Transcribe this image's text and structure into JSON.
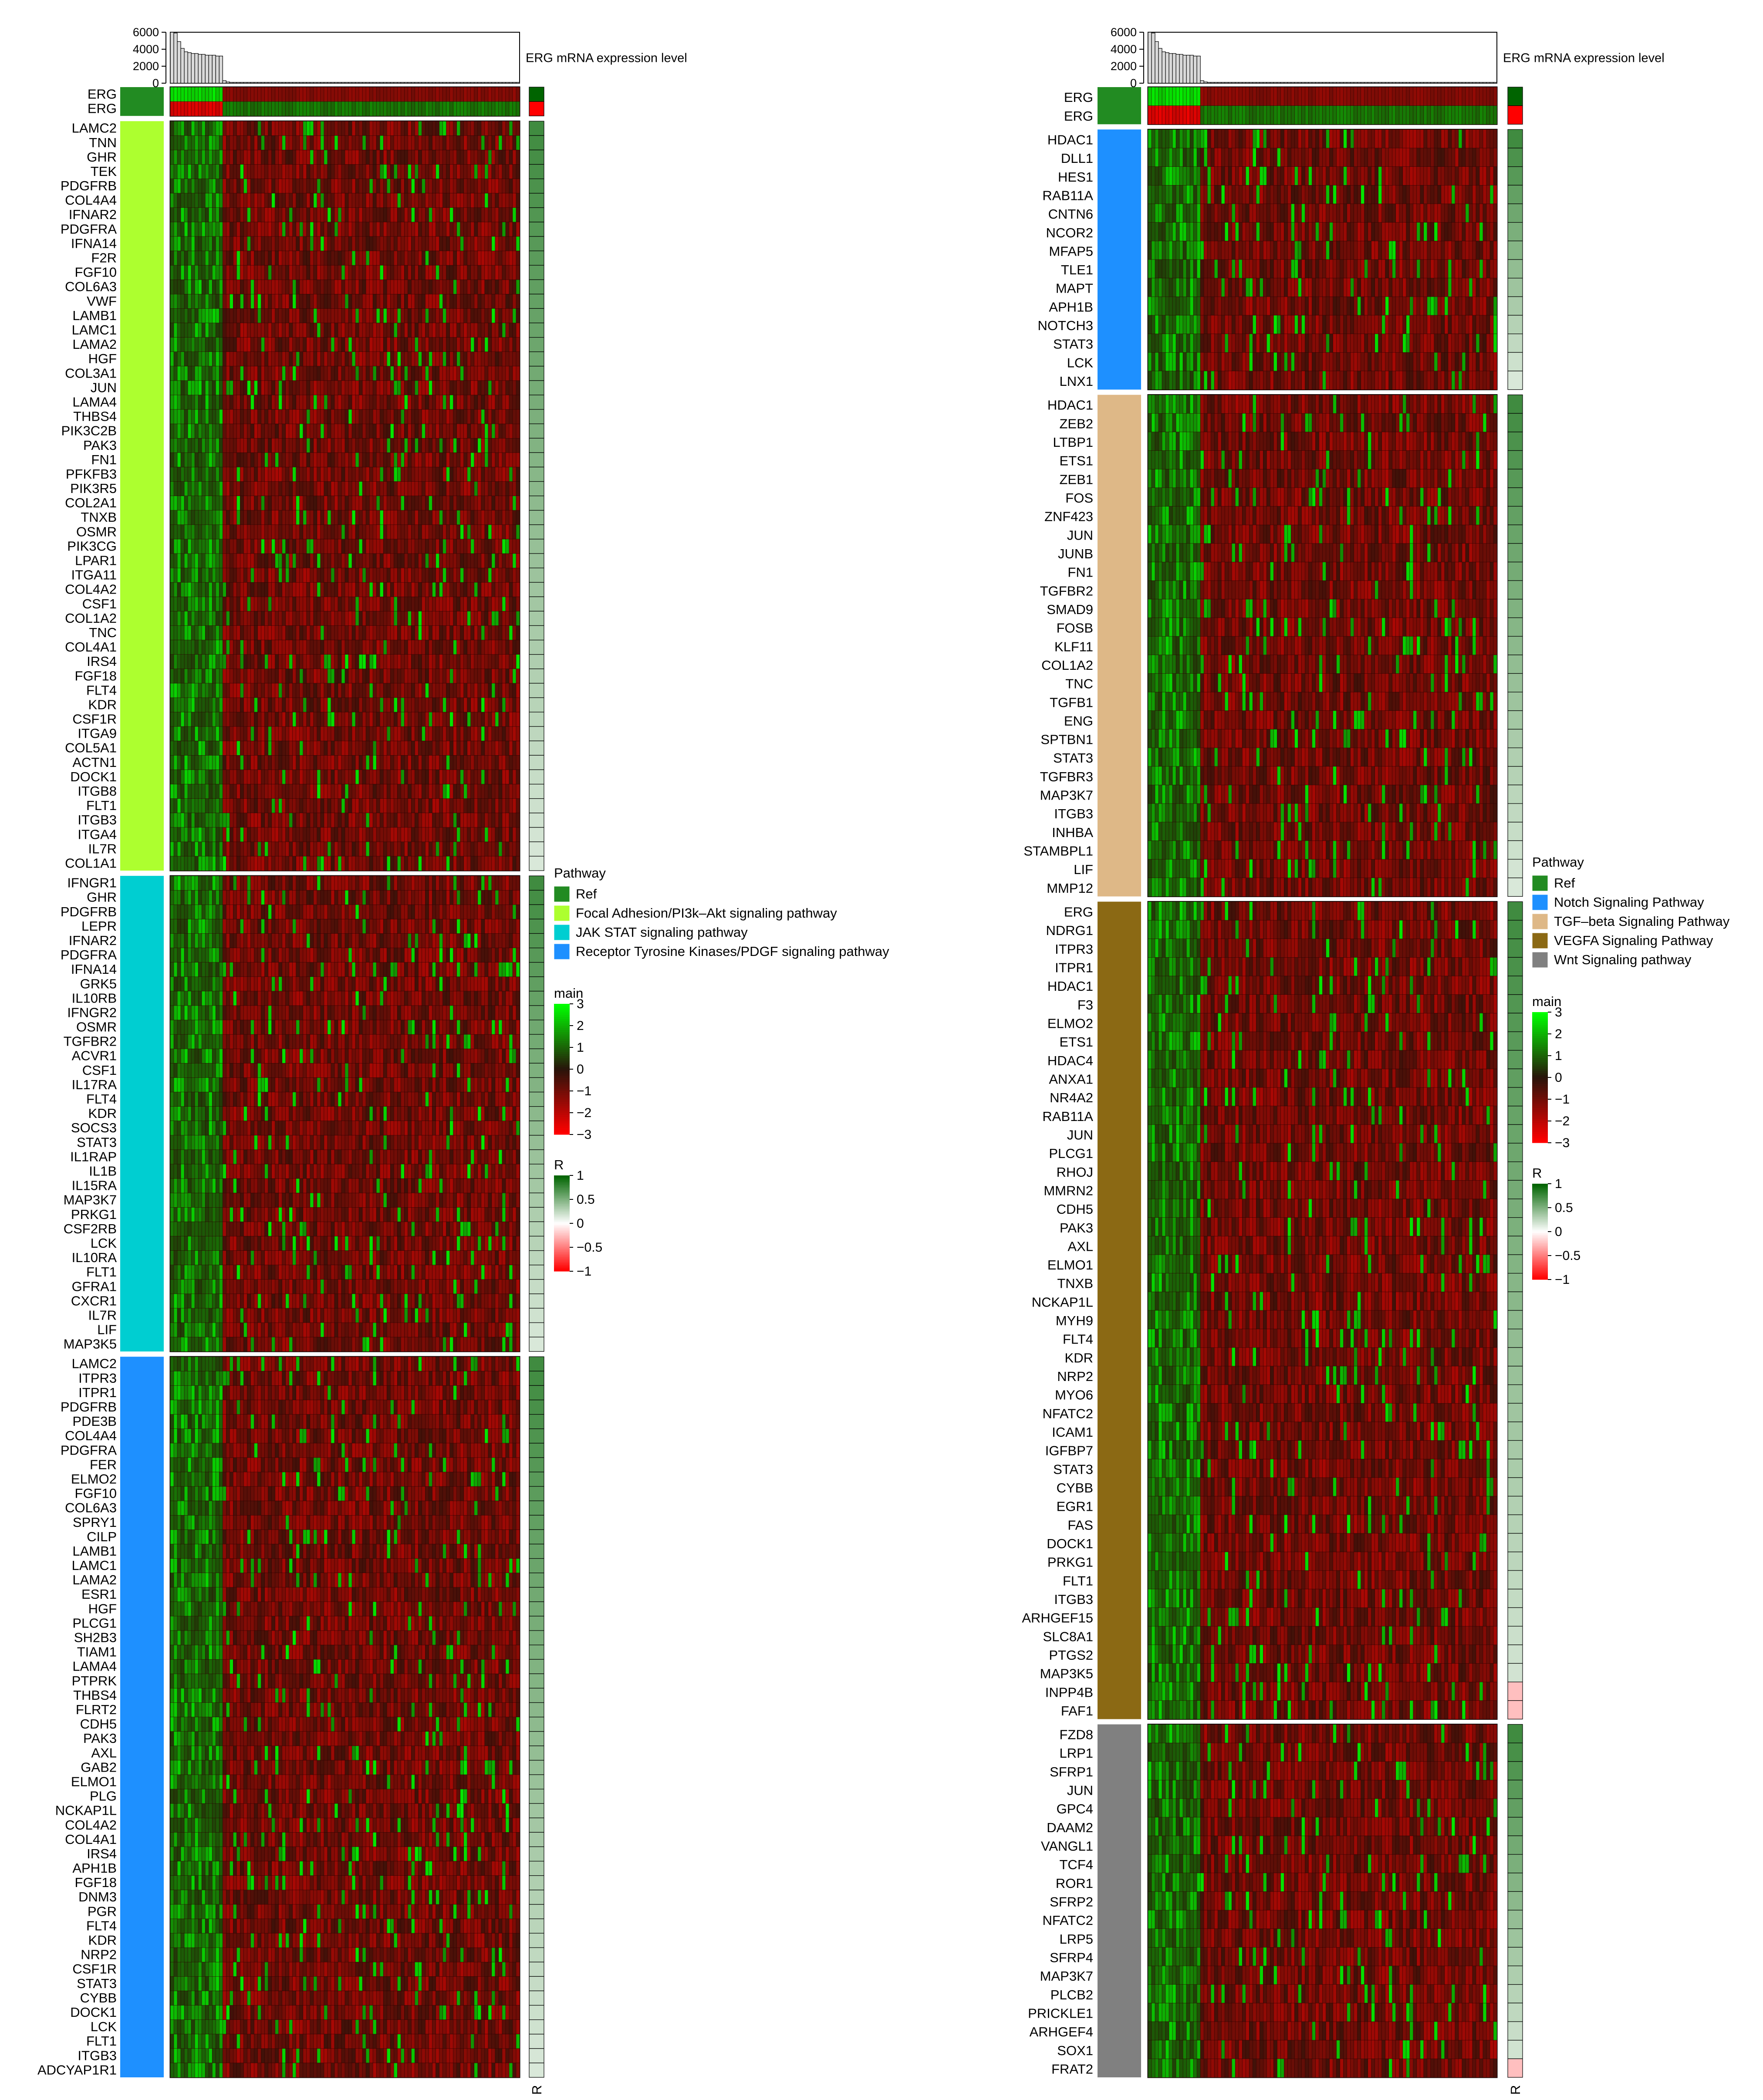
{
  "chart_data": [
    {
      "type": "heatmap",
      "top_bar_label": "ERG mRNA expression level",
      "top_bar_ticks": [
        "6000",
        "4000",
        "2000",
        "0"
      ],
      "top_bar_ylim": [
        0,
        6000
      ],
      "top_bar_values": [
        6200,
        5900,
        4900,
        4100,
        3700,
        3600,
        3500,
        3500,
        3400,
        3400,
        3300,
        3300,
        3300,
        3200,
        3200,
        300,
        150,
        100,
        100,
        100,
        100,
        100,
        100,
        100,
        100,
        100,
        100,
        100,
        100,
        100,
        100,
        100,
        100,
        100,
        100,
        100,
        100,
        100,
        100,
        100,
        100,
        100,
        100,
        100,
        100,
        100,
        100,
        100,
        100,
        100,
        100,
        100,
        100,
        100,
        100,
        100,
        100,
        100,
        100,
        100,
        100,
        100,
        100,
        100,
        100,
        100,
        100,
        100,
        100,
        100,
        100,
        100,
        100,
        100,
        100,
        100,
        100,
        100,
        100,
        100,
        100,
        100,
        100,
        100,
        100,
        100,
        100,
        100,
        100,
        100,
        100,
        100,
        100,
        100,
        100,
        100,
        100,
        100,
        100,
        100
      ],
      "ref_genes": [
        "ERG",
        "ERG"
      ],
      "ref_r": [
        1,
        -1
      ],
      "pathway_blocks": [
        {
          "pathway": "Focal Adhesion/PI3k–Akt signaling pathway",
          "genes": [
            "LAMC2",
            "TNN",
            "GHR",
            "TEK",
            "PDGFRB",
            "COL4A4",
            "IFNAR2",
            "PDGFRA",
            "IFNA14",
            "F2R",
            "FGF10",
            "COL6A3",
            "VWF",
            "LAMB1",
            "LAMC1",
            "LAMA2",
            "HGF",
            "COL3A1",
            "JUN",
            "LAMA4",
            "THBS4",
            "PIK3C2B",
            "PAK3",
            "FN1",
            "PFKFB3",
            "PIK3R5",
            "COL2A1",
            "TNXB",
            "OSMR",
            "PIK3CG",
            "LPAR1",
            "ITGA11",
            "COL4A2",
            "CSF1",
            "COL1A2",
            "TNC",
            "COL4A1",
            "IRS4",
            "FGF18",
            "FLT4",
            "KDR",
            "CSF1R",
            "ITGA9",
            "COL5A1",
            "ACTN1",
            "DOCK1",
            "ITGB8",
            "FLT1",
            "ITGB3",
            "ITGA4",
            "IL7R",
            "COL1A1"
          ]
        },
        {
          "pathway": "JAK STAT signaling pathway",
          "genes": [
            "IFNGR1",
            "GHR",
            "PDGFRB",
            "LEPR",
            "IFNAR2",
            "PDGFRA",
            "IFNA14",
            "GRK5",
            "IL10RB",
            "IFNGR2",
            "OSMR",
            "TGFBR2",
            "ACVR1",
            "CSF1",
            "IL17RA",
            "FLT4",
            "KDR",
            "SOCS3",
            "STAT3",
            "IL1RAP",
            "IL1B",
            "IL15RA",
            "MAP3K7",
            "PRKG1",
            "CSF2RB",
            "LCK",
            "IL10RA",
            "FLT1",
            "GFRA1",
            "CXCR1",
            "IL7R",
            "LIF",
            "MAP3K5"
          ]
        },
        {
          "pathway": "Receptor Tyrosine Kinases/PDGF signaling pathway",
          "genes": [
            "LAMC2",
            "ITPR3",
            "ITPR1",
            "PDGFRB",
            "PDE3B",
            "COL4A4",
            "PDGFRA",
            "FER",
            "ELMO2",
            "FGF10",
            "COL6A3",
            "SPRY1",
            "CILP",
            "LAMB1",
            "LAMC1",
            "LAMA2",
            "ESR1",
            "HGF",
            "PLCG1",
            "SH2B3",
            "TIAM1",
            "LAMA4",
            "PTPRK",
            "THBS4",
            "FLRT2",
            "CDH5",
            "PAK3",
            "AXL",
            "GAB2",
            "ELMO1",
            "PLG",
            "NCKAP1L",
            "COL4A2",
            "COL4A1",
            "IRS4",
            "APH1B",
            "FGF18",
            "DNM3",
            "PGR",
            "FLT4",
            "KDR",
            "NRP2",
            "CSF1R",
            "STAT3",
            "CYBB",
            "DOCK1",
            "LCK",
            "FLT1",
            "ITGB3",
            "ADCYAP1R1"
          ]
        }
      ],
      "legend_pathway_title": "Pathway",
      "legend_pathway_entries": [
        {
          "label": "Ref",
          "color": "#228B22"
        },
        {
          "label": "Focal Adhesion/PI3k–Akt signaling pathway",
          "color": "#ADFF2F"
        },
        {
          "label": "JAK STAT signaling pathway",
          "color": "#00CED1"
        },
        {
          "label": "Receptor Tyrosine Kinases/PDGF signaling pathway",
          "color": "#1E90FF"
        }
      ],
      "legend_main_title": "main",
      "legend_main_ticks": [
        "3",
        "2",
        "1",
        "0",
        "−1",
        "−2",
        "−3"
      ],
      "legend_r_title": "R",
      "legend_r_ticks": [
        "1",
        "0.5",
        "0",
        "−0.5",
        "−1"
      ],
      "r_axis_label": "R"
    },
    {
      "type": "heatmap",
      "top_bar_label": "ERG mRNA expression level",
      "top_bar_ticks": [
        "6000",
        "4000",
        "2000",
        "0"
      ],
      "top_bar_ylim": [
        0,
        6000
      ],
      "top_bar_values": [
        6200,
        5900,
        4900,
        4100,
        3700,
        3600,
        3500,
        3500,
        3400,
        3400,
        3300,
        3300,
        3300,
        3200,
        3200,
        300,
        150,
        100,
        100,
        100,
        100,
        100,
        100,
        100,
        100,
        100,
        100,
        100,
        100,
        100,
        100,
        100,
        100,
        100,
        100,
        100,
        100,
        100,
        100,
        100,
        100,
        100,
        100,
        100,
        100,
        100,
        100,
        100,
        100,
        100,
        100,
        100,
        100,
        100,
        100,
        100,
        100,
        100,
        100,
        100,
        100,
        100,
        100,
        100,
        100,
        100,
        100,
        100,
        100,
        100,
        100,
        100,
        100,
        100,
        100,
        100,
        100,
        100,
        100,
        100,
        100,
        100,
        100,
        100,
        100,
        100,
        100,
        100,
        100,
        100,
        100,
        100,
        100,
        100,
        100,
        100,
        100,
        100,
        100,
        100
      ],
      "ref_genes": [
        "ERG",
        "ERG"
      ],
      "ref_r": [
        1,
        -1
      ],
      "pathway_blocks": [
        {
          "pathway": "Notch Signaling Pathway",
          "genes": [
            "HDAC1",
            "DLL1",
            "HES1",
            "RAB11A",
            "CNTN6",
            "NCOR2",
            "MFAP5",
            "TLE1",
            "MAPT",
            "APH1B",
            "NOTCH3",
            "STAT3",
            "LCK",
            "LNX1"
          ]
        },
        {
          "pathway": "TGF–beta Signaling Pathway",
          "genes": [
            "HDAC1",
            "ZEB2",
            "LTBP1",
            "ETS1",
            "ZEB1",
            "FOS",
            "ZNF423",
            "JUN",
            "JUNB",
            "FN1",
            "TGFBR2",
            "SMAD9",
            "FOSB",
            "KLF11",
            "COL1A2",
            "TNC",
            "TGFB1",
            "ENG",
            "SPTBN1",
            "STAT3",
            "TGFBR3",
            "MAP3K7",
            "ITGB3",
            "INHBA",
            "STAMBPL1",
            "LIF",
            "MMP12"
          ]
        },
        {
          "pathway": "VEGFA Signaling Pathway",
          "genes": [
            "ERG",
            "NDRG1",
            "ITPR3",
            "ITPR1",
            "HDAC1",
            "F3",
            "ELMO2",
            "ETS1",
            "HDAC4",
            "ANXA1",
            "NR4A2",
            "RAB11A",
            "JUN",
            "PLCG1",
            "RHOJ",
            "MMRN2",
            "CDH5",
            "PAK3",
            "AXL",
            "ELMO1",
            "TNXB",
            "NCKAP1L",
            "MYH9",
            "FLT4",
            "KDR",
            "NRP2",
            "MYO6",
            "NFATC2",
            "ICAM1",
            "IGFBP7",
            "STAT3",
            "CYBB",
            "EGR1",
            "FAS",
            "DOCK1",
            "PRKG1",
            "FLT1",
            "ITGB3",
            "ARHGEF15",
            "SLC8A1",
            "PTGS2",
            "MAP3K5",
            "INPP4B",
            "FAF1"
          ]
        },
        {
          "pathway": "Wnt Signaling pathway",
          "genes": [
            "FZD8",
            "LRP1",
            "SFRP1",
            "JUN",
            "GPC4",
            "DAAM2",
            "VANGL1",
            "TCF4",
            "ROR1",
            "SFRP2",
            "NFATC2",
            "LRP5",
            "SFRP4",
            "MAP3K7",
            "PLCB2",
            "PRICKLE1",
            "ARHGEF4",
            "SOX1",
            "FRAT2"
          ]
        }
      ],
      "legend_pathway_title": "Pathway",
      "legend_pathway_entries": [
        {
          "label": "Ref",
          "color": "#228B22"
        },
        {
          "label": "Notch Signaling Pathway",
          "color": "#1E90FF"
        },
        {
          "label": "TGF–beta Signaling Pathway",
          "color": "#DEB887"
        },
        {
          "label": "VEGFA Signaling Pathway",
          "color": "#8B6914"
        },
        {
          "label": "Wnt Signaling pathway",
          "color": "#808080"
        }
      ],
      "legend_main_title": "main",
      "legend_main_ticks": [
        "3",
        "2",
        "1",
        "0",
        "−1",
        "−2",
        "−3"
      ],
      "legend_r_title": "R",
      "legend_r_ticks": [
        "1",
        "0.5",
        "0",
        "−0.5",
        "−1"
      ],
      "r_axis_label": "R"
    }
  ]
}
